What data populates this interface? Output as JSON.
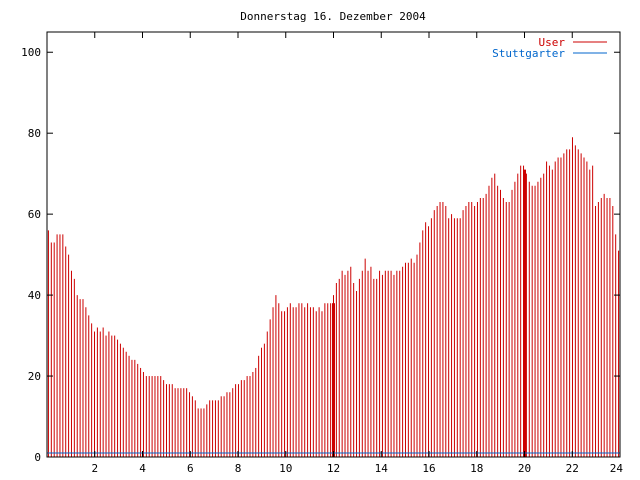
{
  "chart_data": {
    "type": "bar",
    "title": "Donnerstag 16. Dezember 2004",
    "xlabel": "",
    "ylabel": "",
    "xlim": [
      0,
      24
    ],
    "ylim": [
      0,
      105
    ],
    "x_ticks": [
      "2",
      "4",
      "6",
      "8",
      "10",
      "12",
      "14",
      "16",
      "18",
      "20",
      "22",
      "24"
    ],
    "y_ticks": [
      "0",
      "20",
      "40",
      "60",
      "80",
      "100"
    ],
    "grid": false,
    "legend_position": "top-right",
    "colors": {
      "user": "#cc0000",
      "stuttgarter": "#0066cc",
      "axis": "#000000"
    },
    "highlights": [
      12,
      20
    ],
    "series": [
      {
        "name": "User",
        "values": [
          56,
          53,
          53,
          55,
          55,
          55,
          52,
          50,
          46,
          44,
          40,
          39,
          39,
          37,
          35,
          33,
          31,
          32,
          31,
          32,
          30,
          31,
          30,
          30,
          29,
          28,
          27,
          26,
          25,
          24,
          24,
          23,
          22,
          21,
          20,
          20,
          20,
          20,
          20,
          20,
          19,
          18,
          18,
          18,
          17,
          17,
          17,
          17,
          17,
          16,
          15,
          14,
          12,
          12,
          12,
          13,
          14,
          14,
          14,
          14,
          15,
          15,
          16,
          16,
          17,
          18,
          18,
          19,
          19,
          20,
          20,
          21,
          22,
          25,
          27,
          28,
          31,
          34,
          37,
          40,
          38,
          36,
          36,
          37,
          38,
          37,
          37,
          38,
          38,
          37,
          38,
          37,
          37,
          36,
          37,
          36,
          38,
          38,
          38,
          40,
          43,
          44,
          46,
          45,
          46,
          47,
          43,
          41,
          44,
          46,
          49,
          46,
          47,
          44,
          44,
          46,
          45,
          46,
          46,
          46,
          45,
          46,
          46,
          47,
          48,
          48,
          49,
          48,
          50,
          53,
          56,
          58,
          57,
          59,
          61,
          62,
          63,
          63,
          62,
          59,
          60,
          59,
          59,
          59,
          61,
          62,
          63,
          63,
          62,
          63,
          64,
          64,
          65,
          67,
          69,
          70,
          67,
          66,
          64,
          63,
          63,
          66,
          68,
          70,
          72,
          72,
          70,
          68,
          67,
          67,
          68,
          69,
          70,
          73,
          72,
          71,
          73,
          74,
          74,
          75,
          76,
          76,
          79,
          77,
          76,
          75,
          74,
          73,
          71,
          72,
          62,
          63,
          64,
          65,
          64,
          64,
          62,
          55,
          51
        ],
        "highlight_values": [
          38,
          71
        ]
      },
      {
        "name": "Stuttgarter",
        "values": [
          1,
          1
        ],
        "x": [
          0,
          24
        ]
      }
    ]
  }
}
